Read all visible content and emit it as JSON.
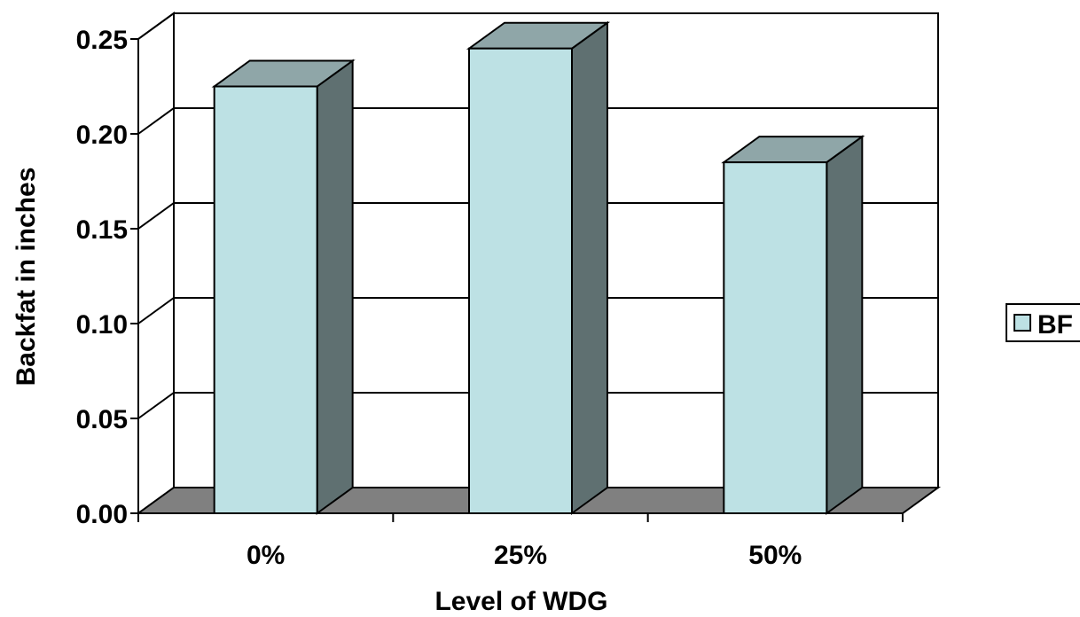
{
  "chart_data": {
    "type": "bar",
    "style": "3d-column",
    "categories": [
      "0%",
      "25%",
      "50%"
    ],
    "series": [
      {
        "name": "BF",
        "values": [
          0.225,
          0.245,
          0.185
        ]
      }
    ],
    "xlabel": "Level of WDG",
    "ylabel": "Backfat in inches",
    "ylim": [
      0,
      0.25
    ],
    "yticks": [
      "0.00",
      "0.05",
      "0.10",
      "0.15",
      "0.20",
      "0.25"
    ],
    "grid": true,
    "legend": "right"
  },
  "colors": {
    "bar_front": "#BDE1E4",
    "bar_side": "#5F7071",
    "bar_top": "#8FA6A8",
    "floor": "#808080",
    "wall": "#ffffff",
    "grid": "#000000"
  }
}
